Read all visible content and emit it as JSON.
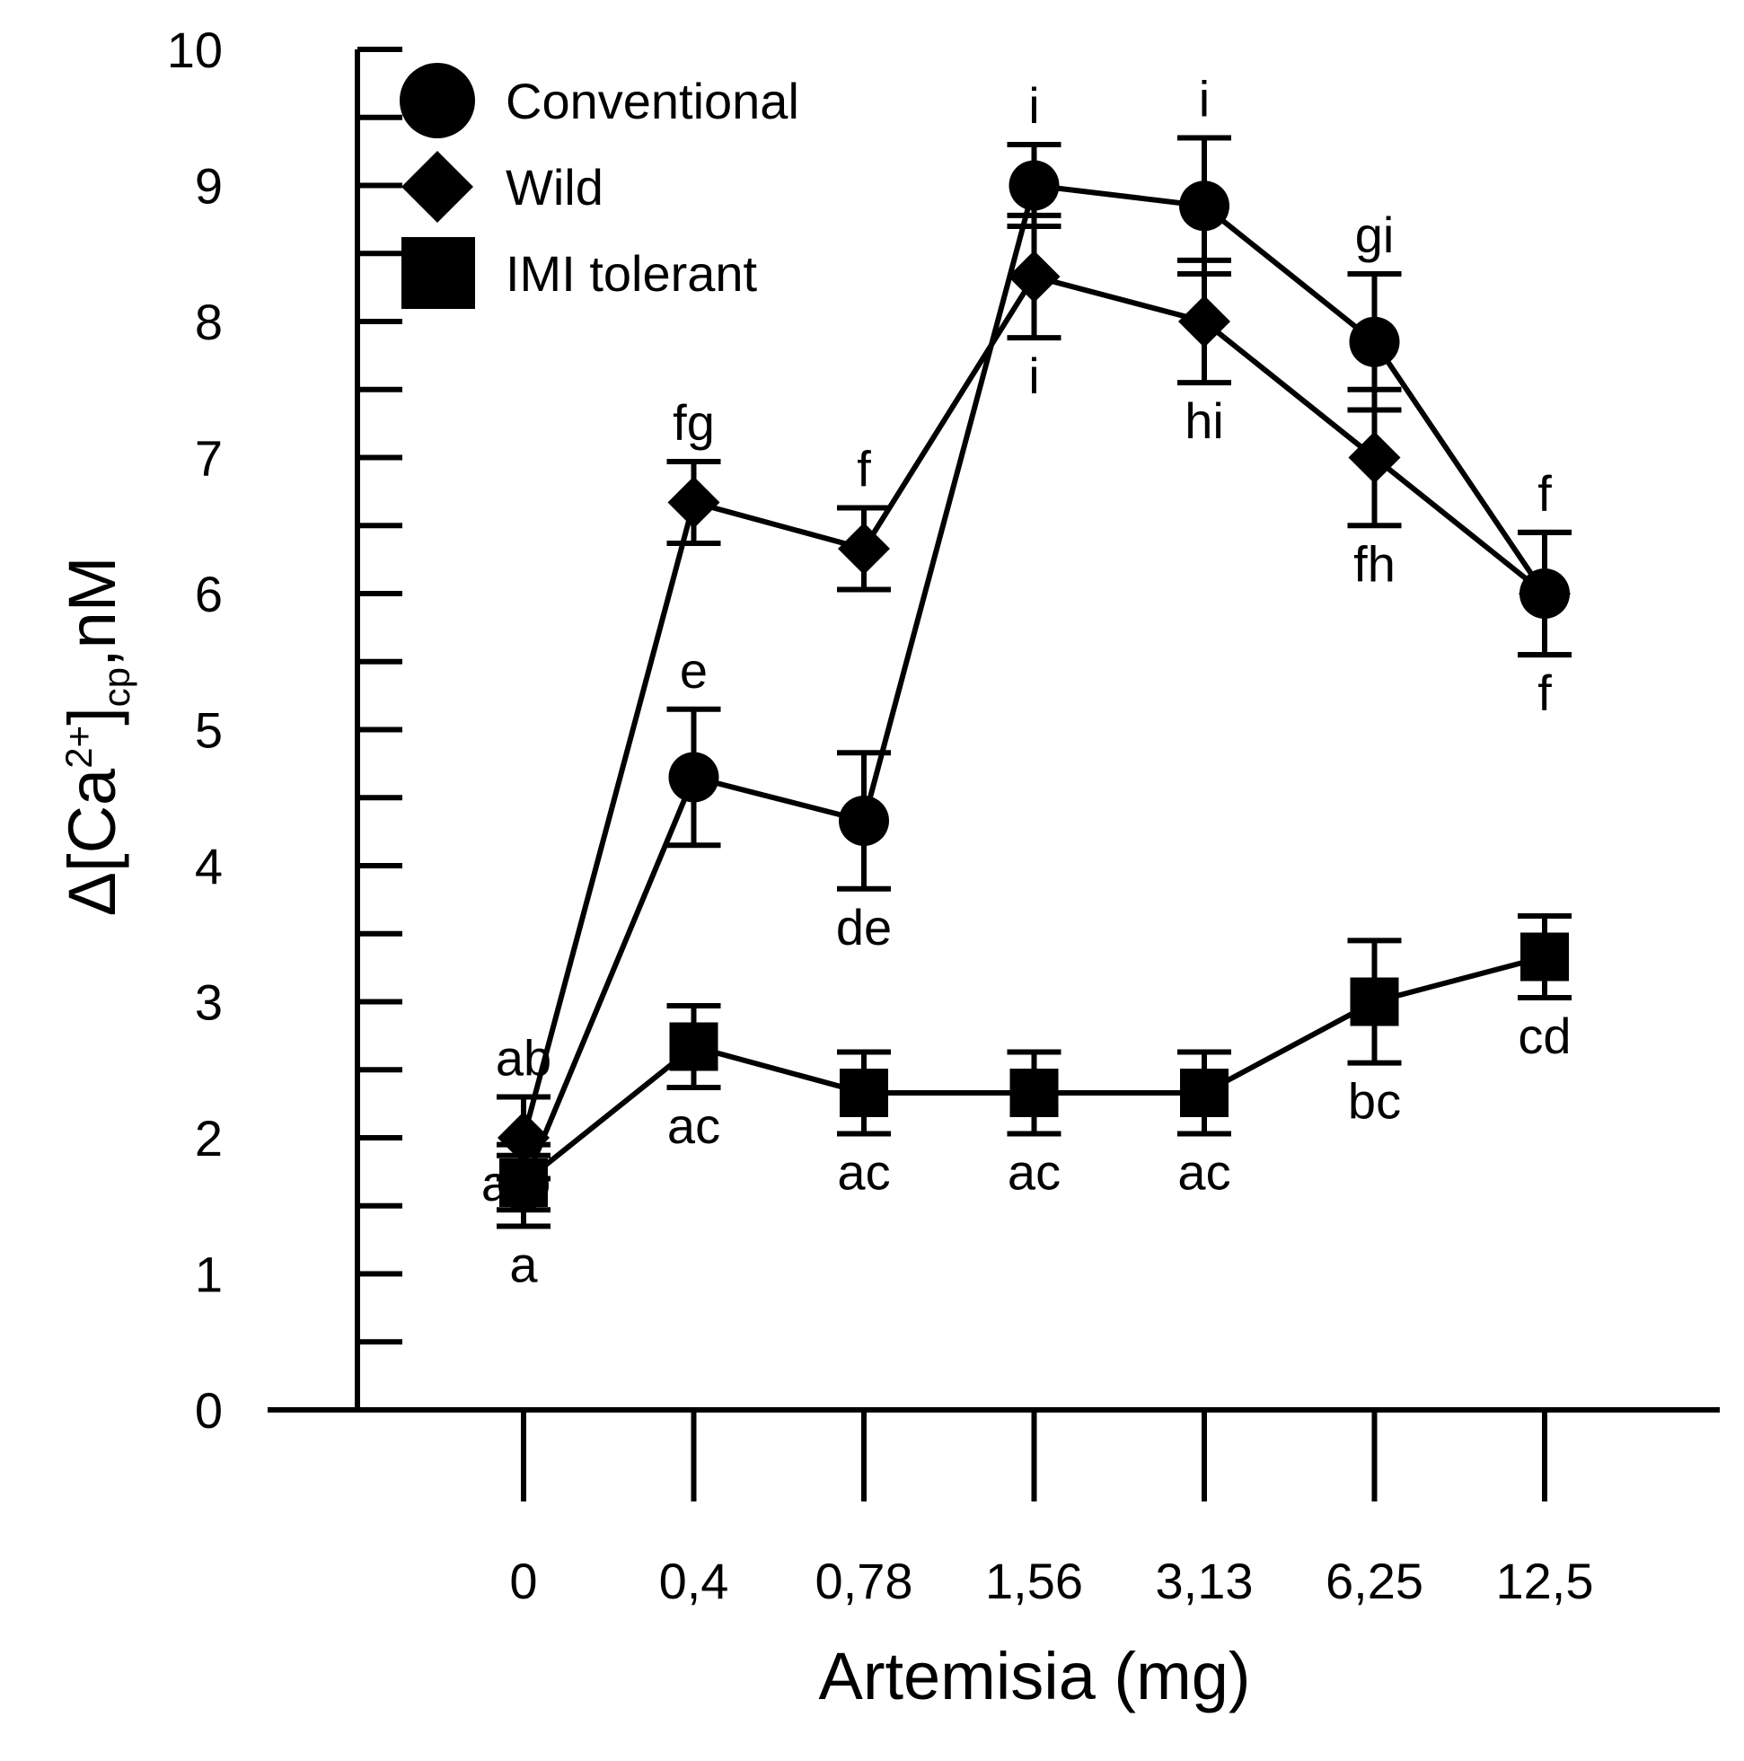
{
  "chart_data": {
    "type": "line",
    "title": "",
    "xlabel": "Artemisia (mg)",
    "ylabel": {
      "prefix": "Δ[Ca",
      "superscript": "2+",
      "close": "]",
      "subscript": "cp",
      "suffix": ",nM"
    },
    "categories": [
      "0",
      "0,4",
      "0,78",
      "1,56",
      "3,13",
      "6,25",
      "12,5"
    ],
    "ylim": [
      0,
      10
    ],
    "yticks": [
      "0",
      "1",
      "2",
      "3",
      "4",
      "5",
      "6",
      "7",
      "8",
      "9",
      "10"
    ],
    "grid": false,
    "legend_position": "top-left",
    "series": [
      {
        "name": "Conventional",
        "marker": "circle",
        "values": [
          1.65,
          4.65,
          4.33,
          9.0,
          8.85,
          7.85,
          6.0
        ],
        "errors": [
          0.3,
          0.5,
          0.5,
          0.3,
          0.5,
          0.5,
          0.45
        ],
        "labels": [
          "a",
          "e",
          "de",
          "i",
          "i",
          "gi",
          "f"
        ],
        "label_side": [
          "below",
          "above",
          "below",
          "above",
          "above",
          "above",
          "above"
        ]
      },
      {
        "name": "Wild",
        "marker": "diamond",
        "values": [
          2.0,
          6.67,
          6.33,
          8.33,
          8.0,
          7.0,
          6.0
        ],
        "errors": [
          0.3,
          0.3,
          0.3,
          0.45,
          0.45,
          0.5,
          0.45
        ],
        "labels": [
          "ab",
          "fg",
          "f",
          "i",
          "hi",
          "fh",
          "f"
        ],
        "label_side": [
          "above",
          "above",
          "above",
          "below",
          "below",
          "below",
          "below"
        ]
      },
      {
        "name": "IMI tolerant",
        "marker": "square",
        "values": [
          1.67,
          2.67,
          2.33,
          2.33,
          2.33,
          3.0,
          3.33
        ],
        "errors": [
          0.2,
          0.3,
          0.3,
          0.3,
          0.3,
          0.45,
          0.3
        ],
        "labels": [
          "a",
          "ac",
          "ac",
          "ac",
          "ac",
          "bc",
          "cd"
        ],
        "label_side": [
          "left",
          "below",
          "below",
          "below",
          "below",
          "below",
          "below"
        ]
      }
    ]
  }
}
